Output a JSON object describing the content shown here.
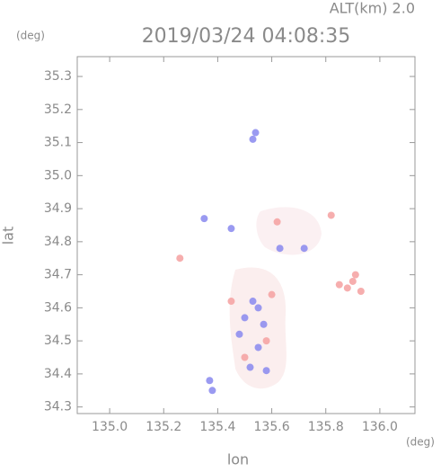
{
  "chart_data": {
    "type": "scatter",
    "title": "2019/03/24 04:08:35",
    "subtitle": "ALT(km) 2.0",
    "x_label": "lon",
    "y_label": "lat",
    "x_unit": "(deg)",
    "y_unit": "(deg)",
    "xlim": [
      134.88,
      136.13
    ],
    "ylim": [
      34.28,
      35.36
    ],
    "xticks": [
      {
        "value": 135,
        "label": "135.0"
      },
      135.2,
      135.4,
      135.6,
      135.8,
      {
        "value": 136,
        "label": "136.0"
      }
    ],
    "yticks": [
      34.3,
      34.4,
      34.5,
      34.6,
      34.7,
      34.8,
      34.9,
      {
        "value": 35,
        "label": "35.0"
      },
      35.1,
      35.2,
      35.3
    ],
    "series": [
      {
        "color": "#8888ee",
        "x": [
          135.54,
          135.53,
          135.35,
          135.45,
          135.53,
          135.55,
          135.5,
          135.57,
          135.48,
          135.55,
          135.52,
          135.58,
          135.37,
          135.38,
          135.63,
          135.72
        ],
        "y": [
          35.13,
          35.11,
          34.87,
          34.84,
          34.62,
          34.6,
          34.57,
          34.55,
          34.52,
          34.48,
          34.42,
          34.41,
          34.38,
          34.35,
          34.78,
          34.78
        ]
      },
      {
        "color": "#f4a0a0",
        "x": [
          135.9,
          135.88,
          135.93,
          135.91,
          135.85,
          135.82,
          135.62,
          135.45,
          135.6,
          135.5,
          135.26,
          135.58
        ],
        "y": [
          34.68,
          34.66,
          34.65,
          34.7,
          34.67,
          34.88,
          34.86,
          34.62,
          34.64,
          34.45,
          34.75,
          34.5
        ]
      }
    ]
  }
}
